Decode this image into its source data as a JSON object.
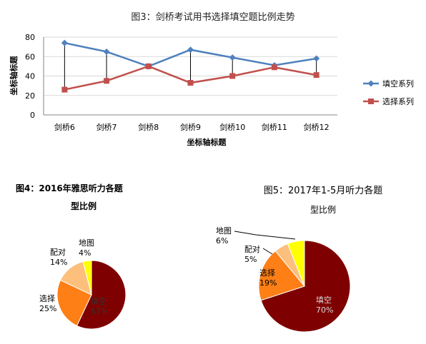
{
  "chart_data": [
    {
      "type": "line",
      "title": "图3：剑桥考试用书选择填空题比例走势",
      "xlabel": "坐标轴标题",
      "ylabel": "坐标轴标题",
      "categories": [
        "剑桥6",
        "剑桥7",
        "剑桥8",
        "剑桥9",
        "剑桥10",
        "剑桥11",
        "剑桥12"
      ],
      "ylim": [
        0,
        80
      ],
      "yticks": [
        0,
        20,
        40,
        60,
        80
      ],
      "grid": true,
      "legend_position": "right",
      "series": [
        {
          "name": "填空系列",
          "values": [
            74,
            65,
            50,
            67,
            59,
            51,
            58
          ],
          "color": "#4f81bd",
          "marker": "diamond"
        },
        {
          "name": "选择系列",
          "values": [
            26,
            35,
            50,
            33,
            40,
            49,
            41
          ],
          "color": "#c0504d",
          "marker": "square"
        }
      ]
    },
    {
      "type": "pie",
      "title": "图4：2016年雅思听力各题",
      "subtitle": "型比例",
      "slices": [
        {
          "label": "填空",
          "value": 57,
          "value_label": "57%",
          "color": "#7f0000"
        },
        {
          "label": "选择",
          "value": 25,
          "value_label": "25%",
          "color": "#fd7f16"
        },
        {
          "label": "配对",
          "value": 14,
          "value_label": "14%",
          "color": "#fdbf7c"
        },
        {
          "label": "地图",
          "value": 4,
          "value_label": "4%",
          "color": "#ffff00"
        }
      ]
    },
    {
      "type": "pie",
      "title": "图5：2017年1-5月听力各题",
      "subtitle": "型比例",
      "slices": [
        {
          "label": "填空",
          "value": 70,
          "value_label": "70%",
          "color": "#7f0000"
        },
        {
          "label": "选择",
          "value": 19,
          "value_label": "19%",
          "color": "#fd7f16"
        },
        {
          "label": "配对",
          "value": 5,
          "value_label": "5%",
          "color": "#fdbf7c"
        },
        {
          "label": "地图",
          "value": 6,
          "value_label": "6%",
          "color": "#ffff00"
        }
      ]
    }
  ]
}
